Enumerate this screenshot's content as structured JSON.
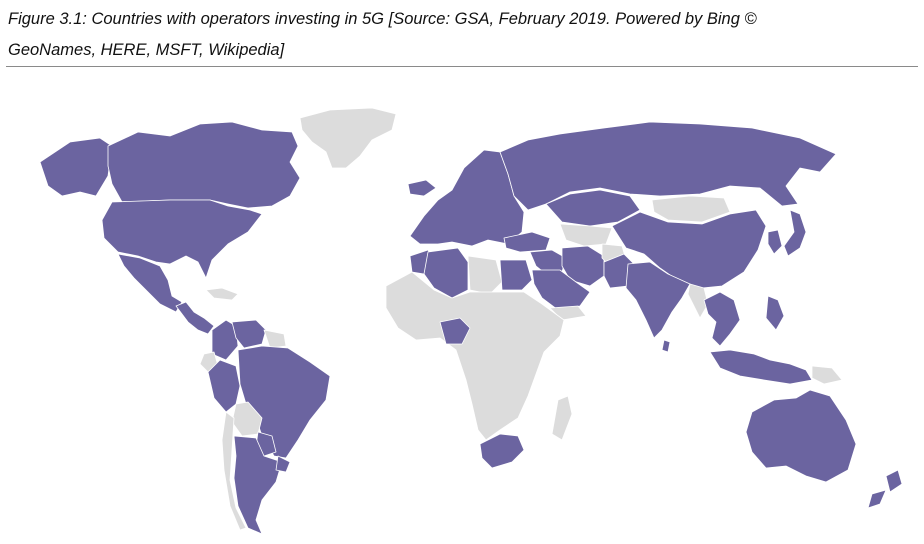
{
  "figure": {
    "caption_line1": "Figure 3.1: Countries with operators investing in 5G [Source: GSA, February 2019. Powered by Bing ©",
    "caption_line2": "GeoNames, HERE, MSFT, Wikipedia]"
  },
  "map": {
    "colors": {
      "investing": "#6b64a0",
      "not_investing": "#dcdcdc",
      "border": "#ffffff"
    },
    "regions": [
      {
        "name": "Canada",
        "status": "investing"
      },
      {
        "name": "United States",
        "status": "investing"
      },
      {
        "name": "Alaska",
        "status": "investing"
      },
      {
        "name": "Greenland",
        "status": "not_investing"
      },
      {
        "name": "Mexico",
        "status": "investing"
      },
      {
        "name": "Central America",
        "status": "investing"
      },
      {
        "name": "Caribbean",
        "status": "not_investing"
      },
      {
        "name": "Colombia",
        "status": "investing"
      },
      {
        "name": "Venezuela",
        "status": "investing"
      },
      {
        "name": "Guianas",
        "status": "not_investing"
      },
      {
        "name": "Ecuador",
        "status": "not_investing"
      },
      {
        "name": "Peru",
        "status": "investing"
      },
      {
        "name": "Brazil",
        "status": "investing"
      },
      {
        "name": "Bolivia",
        "status": "not_investing"
      },
      {
        "name": "Paraguay",
        "status": "investing"
      },
      {
        "name": "Chile",
        "status": "not_investing"
      },
      {
        "name": "Argentina",
        "status": "investing"
      },
      {
        "name": "Uruguay",
        "status": "investing"
      },
      {
        "name": "Iceland",
        "status": "investing"
      },
      {
        "name": "Europe",
        "status": "investing"
      },
      {
        "name": "Russia",
        "status": "investing"
      },
      {
        "name": "Kazakhstan",
        "status": "investing"
      },
      {
        "name": "Central Asia",
        "status": "not_investing"
      },
      {
        "name": "Mongolia",
        "status": "not_investing"
      },
      {
        "name": "China",
        "status": "investing"
      },
      {
        "name": "Korea",
        "status": "investing"
      },
      {
        "name": "Japan",
        "status": "investing"
      },
      {
        "name": "Turkey",
        "status": "investing"
      },
      {
        "name": "Middle East",
        "status": "investing"
      },
      {
        "name": "Saudi Arabia",
        "status": "investing"
      },
      {
        "name": "Yemen",
        "status": "not_investing"
      },
      {
        "name": "Iran",
        "status": "investing"
      },
      {
        "name": "Afghanistan",
        "status": "not_investing"
      },
      {
        "name": "Pakistan",
        "status": "investing"
      },
      {
        "name": "India",
        "status": "investing"
      },
      {
        "name": "Sri Lanka",
        "status": "investing"
      },
      {
        "name": "Southeast Asia",
        "status": "investing"
      },
      {
        "name": "Myanmar",
        "status": "not_investing"
      },
      {
        "name": "Philippines",
        "status": "investing"
      },
      {
        "name": "Indonesia",
        "status": "investing"
      },
      {
        "name": "Papua New Guinea",
        "status": "not_investing"
      },
      {
        "name": "Australia",
        "status": "investing"
      },
      {
        "name": "New Zealand",
        "status": "investing"
      },
      {
        "name": "Morocco",
        "status": "investing"
      },
      {
        "name": "Algeria",
        "status": "investing"
      },
      {
        "name": "Libya",
        "status": "not_investing"
      },
      {
        "name": "Egypt",
        "status": "investing"
      },
      {
        "name": "Nigeria",
        "status": "investing"
      },
      {
        "name": "South Africa",
        "status": "investing"
      },
      {
        "name": "Rest of Africa",
        "status": "not_investing"
      },
      {
        "name": "Madagascar",
        "status": "not_investing"
      }
    ]
  }
}
